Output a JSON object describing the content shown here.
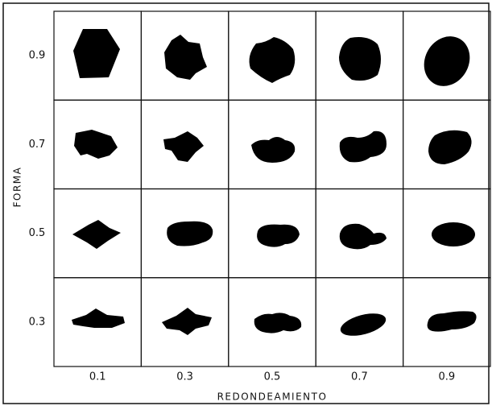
{
  "y_axis": {
    "title": "FORMA",
    "labels": [
      "0.9",
      "0.7",
      "0.5",
      "0.3"
    ]
  },
  "x_axis": {
    "title": "REDONDEAMIENTO",
    "labels": [
      "0.1",
      "0.3",
      "0.5",
      "0.7",
      "0.9"
    ]
  }
}
